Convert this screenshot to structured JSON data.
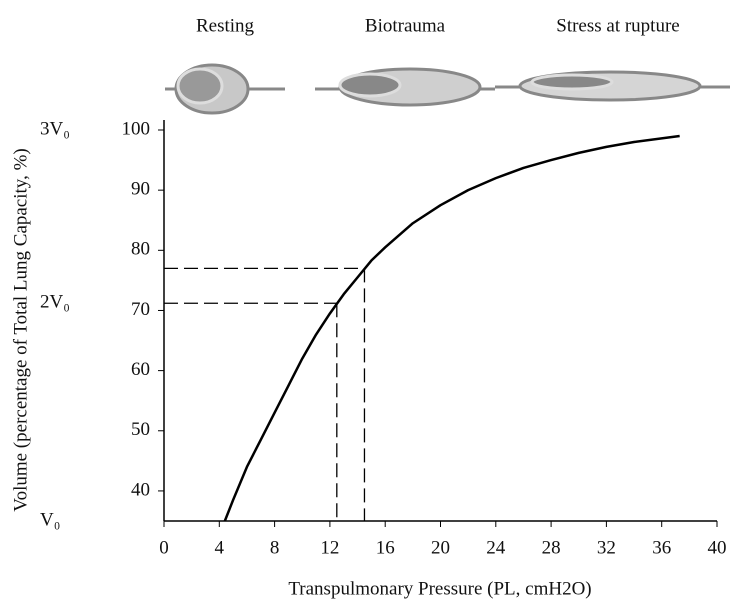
{
  "chart_data": {
    "type": "line",
    "stage_labels": [
      "Resting",
      "Biotrauma",
      "Stress at rupture"
    ],
    "xlabel": "Transpulmonary Pressure (PL, cmH2O)",
    "ylabel": "Volume (percentage of Total Lung Capacity, %)",
    "xlim": [
      0,
      40
    ],
    "xticks": [
      0,
      4,
      8,
      12,
      16,
      20,
      24,
      28,
      32,
      36,
      40
    ],
    "ylim": [
      35,
      100
    ],
    "yticks": [
      40,
      50,
      60,
      70,
      80,
      90,
      100
    ],
    "volume_markers": [
      {
        "value": 100,
        "label": "3V₀"
      },
      {
        "value": 71.2,
        "label": "2V₀"
      },
      {
        "value": 35,
        "label": "V₀"
      }
    ],
    "reference_points": [
      {
        "x": 12.5,
        "y": 71.2
      },
      {
        "x": 14.5,
        "y": 77
      }
    ],
    "series": [
      {
        "color": "#000000",
        "x": [
          4.4,
          5,
          6,
          7,
          8,
          9,
          10,
          11,
          12,
          13,
          14,
          15,
          16,
          18,
          20,
          22,
          24,
          26,
          28,
          30,
          32,
          34,
          37.3
        ],
        "values": [
          35,
          38.5,
          44,
          48.5,
          53,
          57.5,
          62,
          66,
          69.5,
          72.7,
          75.5,
          78.3,
          80.5,
          84.5,
          87.5,
          90,
          92,
          93.7,
          95,
          96.2,
          97.2,
          98,
          99
        ]
      }
    ]
  }
}
